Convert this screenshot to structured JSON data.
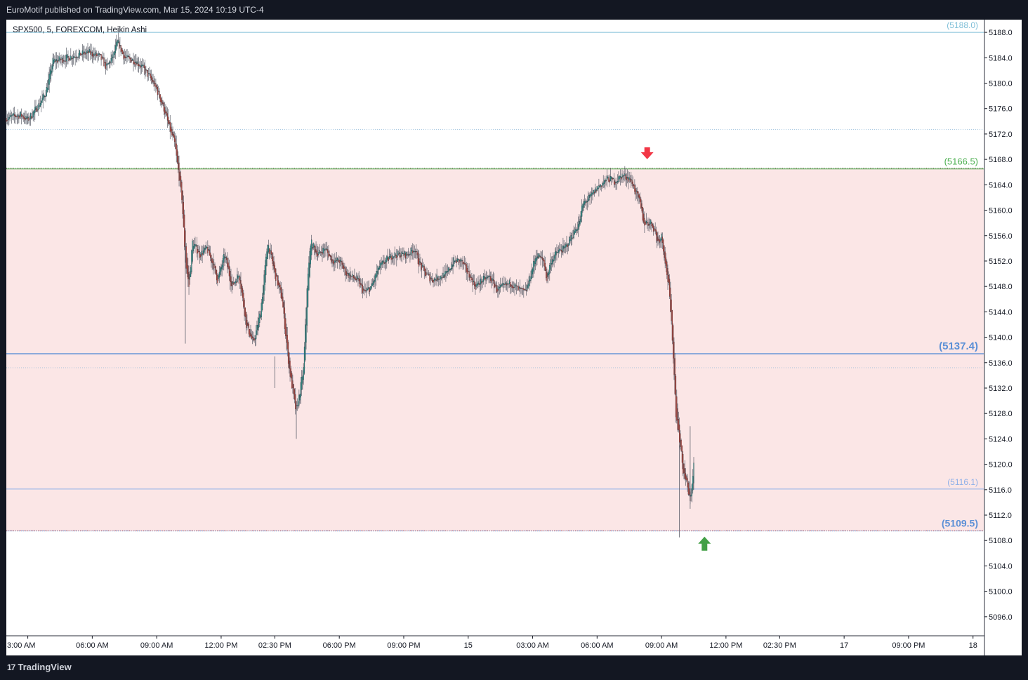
{
  "header": {
    "published": "EuroMotif published on TradingView.com, Mar 15, 2024 10:19 UTC-4"
  },
  "footer": {
    "brand": "TradingView",
    "logo": "tradingview-logo-icon"
  },
  "chart_data": {
    "type": "candlestick",
    "symbol_label": "SPX500, 5, FOREXCOM, Heikin Ashi",
    "ylim": [
      5093,
      5190
    ],
    "y_ticks": [
      "5188.0",
      "5184.0",
      "5180.0",
      "5176.0",
      "5172.0",
      "5168.0",
      "5164.0",
      "5160.0",
      "5156.0",
      "5152.0",
      "5148.0",
      "5144.0",
      "5140.0",
      "5136.0",
      "5132.0",
      "5128.0",
      "5124.0",
      "5120.0",
      "5116.0",
      "5112.0",
      "5108.0",
      "5104.0",
      "5100.0",
      "5096.0"
    ],
    "x_ticks": [
      {
        "label": "3:00 AM",
        "t": 12
      },
      {
        "label": "06:00 AM",
        "t": 48
      },
      {
        "label": "09:00 AM",
        "t": 84
      },
      {
        "label": "12:00 PM",
        "t": 120
      },
      {
        "label": "02:30 PM",
        "t": 150
      },
      {
        "label": "06:00 PM",
        "t": 186
      },
      {
        "label": "09:00 PM",
        "t": 222
      },
      {
        "label": "15",
        "t": 258
      },
      {
        "label": "03:00 AM",
        "t": 294
      },
      {
        "label": "06:00 AM",
        "t": 330
      },
      {
        "label": "09:00 AM",
        "t": 366
      },
      {
        "label": "12:00 PM",
        "t": 402
      },
      {
        "label": "02:30 PM",
        "t": 432
      },
      {
        "label": "17",
        "t": 468
      },
      {
        "label": "09:00 PM",
        "t": 504
      },
      {
        "label": "18",
        "t": 540
      }
    ],
    "x_range": [
      0,
      546
    ],
    "levels": [
      {
        "label": "(5188.0)",
        "value": 5188.0,
        "color": "#7fbfd8",
        "style": "solid",
        "width": 1,
        "font": 12
      },
      {
        "label": "(5166.5)",
        "value": 5166.5,
        "color": "#4caf50",
        "style": "solid",
        "width": 1,
        "font": 13
      },
      {
        "label": "(5137.4)",
        "value": 5137.4,
        "color": "#5b8fd6",
        "style": "solid",
        "width": 1.5,
        "font": 15
      },
      {
        "label": "(5116.1)",
        "value": 5116.1,
        "color": "#8fb0e8",
        "style": "solid",
        "width": 1,
        "font": 12
      },
      {
        "label": "(5109.5)",
        "value": 5109.5,
        "color": "#5b8fd6",
        "style": "dotted",
        "width": 1,
        "font": 14
      }
    ],
    "faint_lines": [
      5172.7,
      5135.2
    ],
    "zone": {
      "from": 5166.5,
      "to": 5109.5,
      "color": "#fbe6e6"
    },
    "markers": [
      {
        "type": "arrow-down",
        "color": "#f23645",
        "t": 358,
        "value": 5168.8
      },
      {
        "type": "arrow-up",
        "color": "#43a047",
        "t": 390,
        "value": 5107.5
      }
    ],
    "bull_color": "#26a69a",
    "bear_color": "#d04536",
    "path": [
      [
        0,
        5174.5
      ],
      [
        8,
        5175
      ],
      [
        12,
        5174.2
      ],
      [
        18,
        5176.5
      ],
      [
        22,
        5178.5
      ],
      [
        26,
        5183.5
      ],
      [
        32,
        5183.8
      ],
      [
        40,
        5184.5
      ],
      [
        46,
        5184.8
      ],
      [
        52,
        5184.2
      ],
      [
        56,
        5182.5
      ],
      [
        60,
        5184.5
      ],
      [
        62,
        5186.5
      ],
      [
        66,
        5184
      ],
      [
        72,
        5183.5
      ],
      [
        76,
        5182.5
      ],
      [
        80,
        5181
      ],
      [
        84,
        5179
      ],
      [
        88,
        5176
      ],
      [
        91,
        5173
      ],
      [
        94,
        5170.5
      ],
      [
        98,
        5162
      ],
      [
        100,
        5152
      ],
      [
        102,
        5148
      ],
      [
        104,
        5155
      ],
      [
        108,
        5153
      ],
      [
        112,
        5154
      ],
      [
        116,
        5151
      ],
      [
        118,
        5149
      ],
      [
        122,
        5153
      ],
      [
        126,
        5148
      ],
      [
        130,
        5150
      ],
      [
        134,
        5142
      ],
      [
        138,
        5139
      ],
      [
        142,
        5144
      ],
      [
        146,
        5155
      ],
      [
        150,
        5150
      ],
      [
        154,
        5146
      ],
      [
        158,
        5135
      ],
      [
        162,
        5128
      ],
      [
        166,
        5135
      ],
      [
        168,
        5148
      ],
      [
        170,
        5155
      ],
      [
        174,
        5153
      ],
      [
        178,
        5154
      ],
      [
        182,
        5152
      ],
      [
        186,
        5152
      ],
      [
        190,
        5150
      ],
      [
        196,
        5149
      ],
      [
        200,
        5147
      ],
      [
        204,
        5148
      ],
      [
        208,
        5151
      ],
      [
        212,
        5152
      ],
      [
        216,
        5153
      ],
      [
        220,
        5153
      ],
      [
        224,
        5153
      ],
      [
        228,
        5154
      ],
      [
        230,
        5152
      ],
      [
        234,
        5150
      ],
      [
        238,
        5149
      ],
      [
        242,
        5149.5
      ],
      [
        246,
        5150
      ],
      [
        250,
        5152
      ],
      [
        254,
        5152
      ],
      [
        258,
        5150
      ],
      [
        262,
        5148
      ],
      [
        266,
        5149
      ],
      [
        270,
        5149.5
      ],
      [
        274,
        5147.5
      ],
      [
        278,
        5148
      ],
      [
        282,
        5148.5
      ],
      [
        286,
        5147.5
      ],
      [
        290,
        5147
      ],
      [
        294,
        5151
      ],
      [
        296,
        5153
      ],
      [
        300,
        5152
      ],
      [
        302,
        5149
      ],
      [
        304,
        5152
      ],
      [
        308,
        5153.5
      ],
      [
        312,
        5154
      ],
      [
        316,
        5156
      ],
      [
        320,
        5158
      ],
      [
        322,
        5161
      ],
      [
        326,
        5162
      ],
      [
        330,
        5163.5
      ],
      [
        336,
        5165
      ],
      [
        340,
        5164.5
      ],
      [
        344,
        5165.5
      ],
      [
        348,
        5165
      ],
      [
        350,
        5164
      ],
      [
        354,
        5161
      ],
      [
        356,
        5158
      ],
      [
        360,
        5158
      ],
      [
        362,
        5157
      ],
      [
        364,
        5155
      ],
      [
        366,
        5156
      ],
      [
        368,
        5152
      ],
      [
        370,
        5148
      ],
      [
        372,
        5140
      ],
      [
        374,
        5128
      ],
      [
        376,
        5124
      ],
      [
        378,
        5119
      ],
      [
        380,
        5117
      ],
      [
        382,
        5114
      ],
      [
        384,
        5120
      ]
    ]
  }
}
